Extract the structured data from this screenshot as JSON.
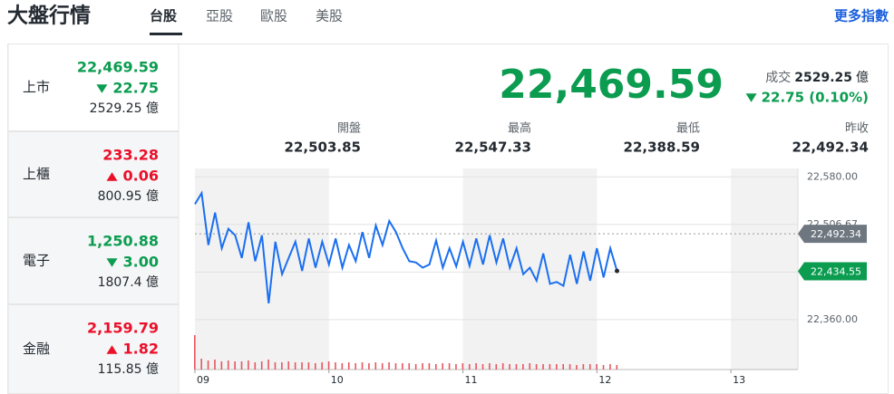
{
  "header": {
    "title": "大盤行情",
    "tabs": [
      "台股",
      "亞股",
      "歐股",
      "美股"
    ],
    "active_tab": 0,
    "more": "更多指數"
  },
  "markets": [
    {
      "name": "上市",
      "price": "22,469.59",
      "change": "22.75",
      "direction": "down",
      "volume": "2529.25 億"
    },
    {
      "name": "上櫃",
      "price": "233.28",
      "change": "0.06",
      "direction": "up",
      "volume": "800.95 億"
    },
    {
      "name": "電子",
      "price": "1,250.88",
      "change": "3.00",
      "direction": "down",
      "volume": "1807.4 億"
    },
    {
      "name": "金融",
      "price": "2,159.79",
      "change": "1.82",
      "direction": "up",
      "volume": "115.85 億"
    }
  ],
  "summary": {
    "price": "22,469.59",
    "volume_label": "成交",
    "volume": "2529.25",
    "volume_unit": "億",
    "change": "22.75 (0.10%)",
    "direction": "down",
    "stats": [
      {
        "label": "開盤",
        "value": "22,503.85"
      },
      {
        "label": "最高",
        "value": "22,547.33"
      },
      {
        "label": "最低",
        "value": "22,388.59"
      },
      {
        "label": "昨收",
        "value": "22,492.34"
      }
    ]
  },
  "chart_data": {
    "type": "line",
    "color": "#1a6ff0",
    "volume_color": "#e8555f",
    "x": [
      9.0,
      9.05,
      9.1,
      9.15,
      9.2,
      9.25,
      9.3,
      9.35,
      9.4,
      9.45,
      9.5,
      9.55,
      9.6,
      9.65,
      9.7,
      9.75,
      9.8,
      9.85,
      9.9,
      9.95,
      10.0,
      10.05,
      10.1,
      10.15,
      10.2,
      10.25,
      10.3,
      10.35,
      10.4,
      10.45,
      10.5,
      10.55,
      10.6,
      10.65,
      10.7,
      10.75,
      10.8,
      10.85,
      10.9,
      10.95,
      11.0,
      11.05,
      11.1,
      11.15,
      11.2,
      11.25,
      11.3,
      11.35,
      11.4,
      11.45,
      11.5,
      11.55,
      11.6,
      11.65,
      11.7,
      11.75,
      11.8,
      11.85,
      11.9,
      11.95,
      12.0,
      12.05,
      12.1,
      12.15
    ],
    "values": [
      22538,
      22555,
      22475,
      22525,
      22470,
      22500,
      22490,
      22455,
      22510,
      22450,
      22490,
      22385,
      22480,
      22430,
      22455,
      22480,
      22435,
      22485,
      22440,
      22480,
      22445,
      22485,
      22440,
      22475,
      22450,
      22495,
      22455,
      22505,
      22475,
      22512,
      22495,
      22470,
      22450,
      22448,
      22440,
      22445,
      22482,
      22440,
      22470,
      22442,
      22480,
      22443,
      22485,
      22445,
      22490,
      22448,
      22485,
      22440,
      22470,
      22430,
      22440,
      22420,
      22462,
      22415,
      22418,
      22412,
      22460,
      22415,
      22465,
      22420,
      22470,
      22425,
      22470,
      22435
    ],
    "volume": [
      38,
      12,
      10,
      11,
      9,
      10,
      9,
      9,
      10,
      8,
      9,
      11,
      8,
      8,
      9,
      8,
      8,
      8,
      7,
      8,
      9,
      8,
      7,
      8,
      7,
      8,
      7,
      8,
      7,
      8,
      7,
      7,
      7,
      6,
      7,
      7,
      6,
      7,
      7,
      6,
      7,
      6,
      7,
      6,
      7,
      6,
      7,
      6,
      6,
      6,
      7,
      6,
      6,
      6,
      6,
      6,
      6,
      5,
      6,
      6,
      6,
      5,
      6,
      5
    ],
    "xlim": [
      9,
      13.5
    ],
    "xticks": [
      {
        "value": 9,
        "label": "09"
      },
      {
        "value": 10,
        "label": "10"
      },
      {
        "value": 11,
        "label": "11"
      },
      {
        "value": 12,
        "label": "12"
      },
      {
        "value": 13,
        "label": "13"
      }
    ],
    "ylim": [
      22343,
      22593
    ],
    "yticks": [
      {
        "value": 22580,
        "label": "22,580.00"
      },
      {
        "value": 22506.67,
        "label": "22,506.67"
      },
      {
        "value": 22433.33,
        "label": "22,433.33"
      },
      {
        "value": 22360,
        "label": "22,360.00"
      }
    ],
    "reference": {
      "value": 22492.34,
      "label": "22,492.34"
    },
    "last": {
      "value": 22434.55,
      "label": "22,434.55"
    },
    "grid": true
  }
}
